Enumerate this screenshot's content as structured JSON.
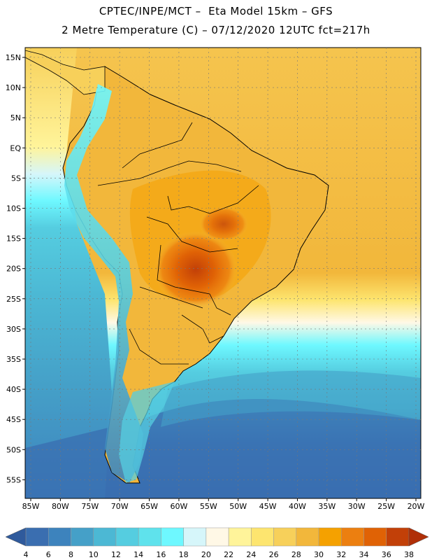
{
  "header": {
    "line1": "CPTEC/INPE/MCT –  Eta Model 15km – GFS",
    "line2": "2 Metre Temperature (C) – 07/12/2020 12UTC fct=217h"
  },
  "map": {
    "lat_labels": [
      "15N",
      "10N",
      "5N",
      "EQ",
      "5S",
      "10S",
      "15S",
      "20S",
      "25S",
      "30S",
      "35S",
      "40S",
      "45S",
      "50S",
      "55S"
    ],
    "lon_labels": [
      "85W",
      "80W",
      "75W",
      "70W",
      "65W",
      "60W",
      "55W",
      "50W",
      "45W",
      "40W",
      "35W",
      "30W",
      "25W",
      "20W"
    ]
  },
  "legend": {
    "labels": [
      "4",
      "6",
      "8",
      "10",
      "12",
      "14",
      "16",
      "18",
      "20",
      "22",
      "24",
      "26",
      "28",
      "30",
      "32",
      "34",
      "36",
      "38"
    ],
    "colors": [
      "#3a6eb0",
      "#3d83bd",
      "#45a0c8",
      "#4cb8d4",
      "#55cde0",
      "#5fe2ec",
      "#6ef8ff",
      "#d6f6fa",
      "#fff8e6",
      "#fff49a",
      "#fde56f",
      "#f7d05a",
      "#f2b73b",
      "#f5a100",
      "#ec7f10",
      "#e06205",
      "#c24008"
    ],
    "low_arrow_color": "#2f5a9c",
    "high_arrow_color": "#b02f08"
  },
  "colors": {
    "ocean_south": "#3a6eb0",
    "ocean_tropical": "#f7d05a",
    "land_interior": "#f2b73b",
    "land_hot": "#e06205",
    "land_hottest": "#c24008",
    "andes_cold": "#55cde0"
  }
}
